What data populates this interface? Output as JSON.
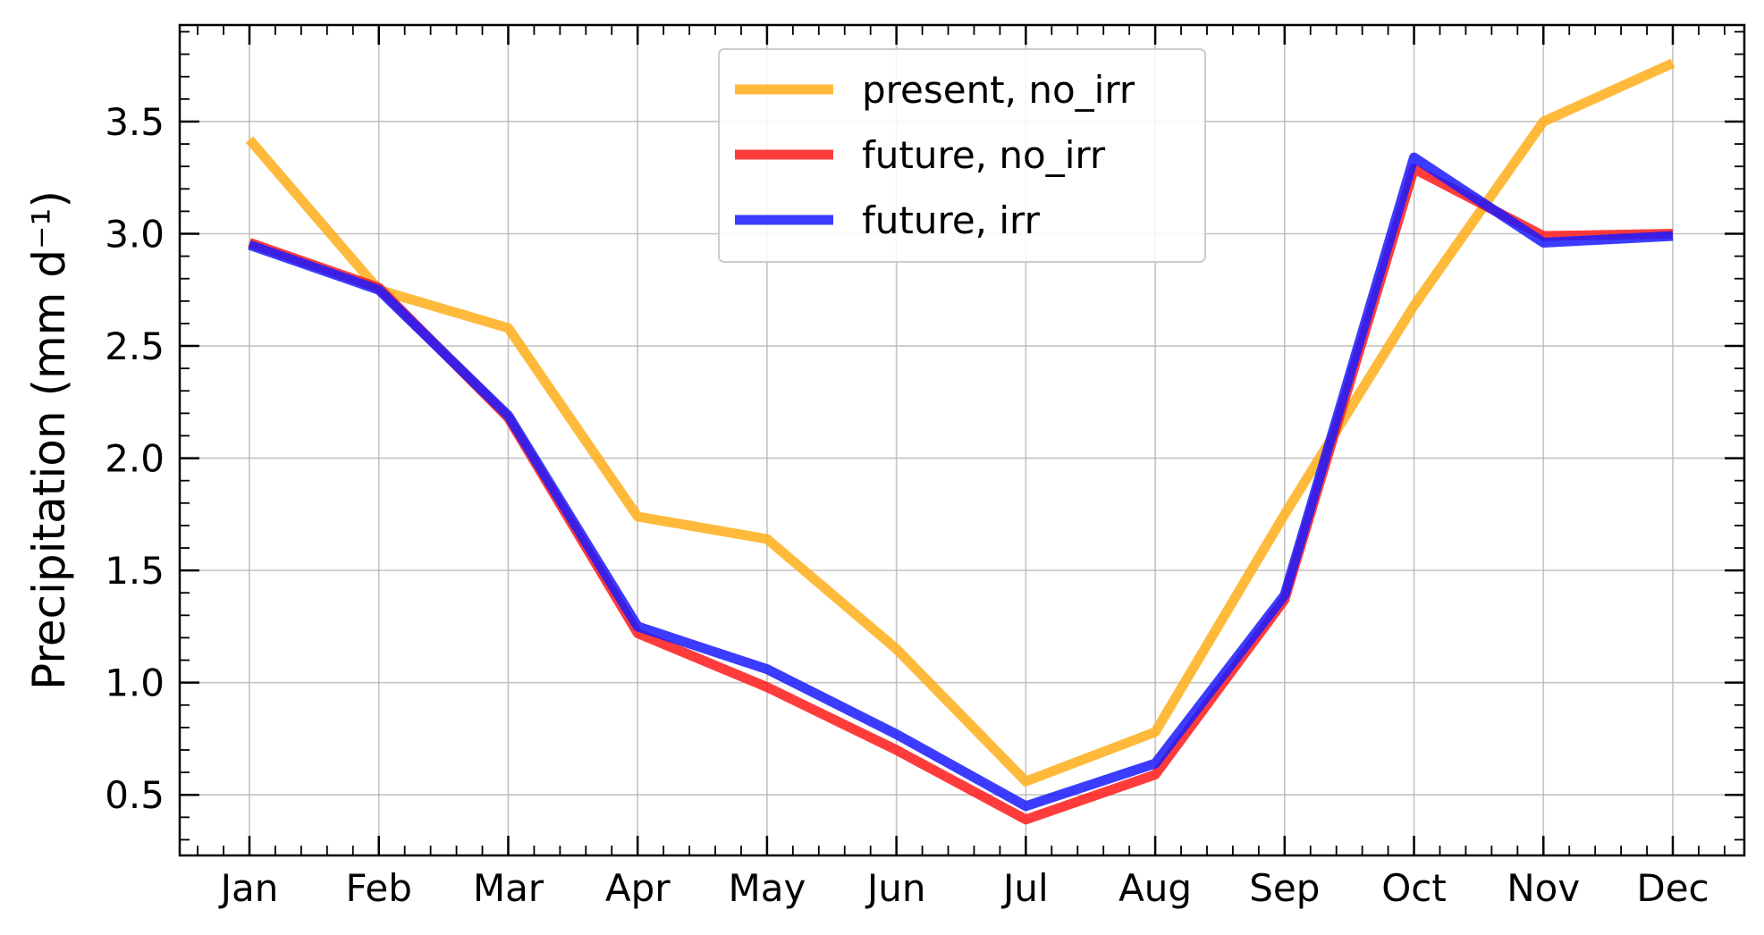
{
  "chart_data": {
    "type": "line",
    "title": "",
    "xlabel": "",
    "ylabel": "Precipitation (mm d⁻¹)",
    "categories": [
      "Jan",
      "Feb",
      "Mar",
      "Apr",
      "May",
      "Jun",
      "Jul",
      "Aug",
      "Sep",
      "Oct",
      "Nov",
      "Dec"
    ],
    "ylim": [
      0.23,
      3.93
    ],
    "yticks": [
      0.5,
      1.0,
      1.5,
      2.0,
      2.5,
      3.0,
      3.5
    ],
    "ytick_labels": [
      "0.5",
      "1.0",
      "1.5",
      "2.0",
      "2.5",
      "3.0",
      "3.5"
    ],
    "grid": true,
    "legend_position": "top-center",
    "series": [
      {
        "name": "present, no_irr",
        "color": "#ffae1a",
        "values": [
          3.42,
          2.75,
          2.58,
          1.74,
          1.64,
          1.15,
          0.56,
          0.78,
          1.75,
          2.68,
          3.5,
          3.76
        ]
      },
      {
        "name": "future, no_irr",
        "color": "#ff1a1a",
        "values": [
          2.96,
          2.76,
          2.18,
          1.22,
          0.98,
          0.7,
          0.39,
          0.59,
          1.37,
          3.29,
          2.99,
          3.0
        ]
      },
      {
        "name": "future, irr",
        "color": "#1a1aff",
        "values": [
          2.95,
          2.75,
          2.19,
          1.25,
          1.06,
          0.77,
          0.45,
          0.64,
          1.39,
          3.34,
          2.96,
          2.99
        ]
      }
    ]
  }
}
